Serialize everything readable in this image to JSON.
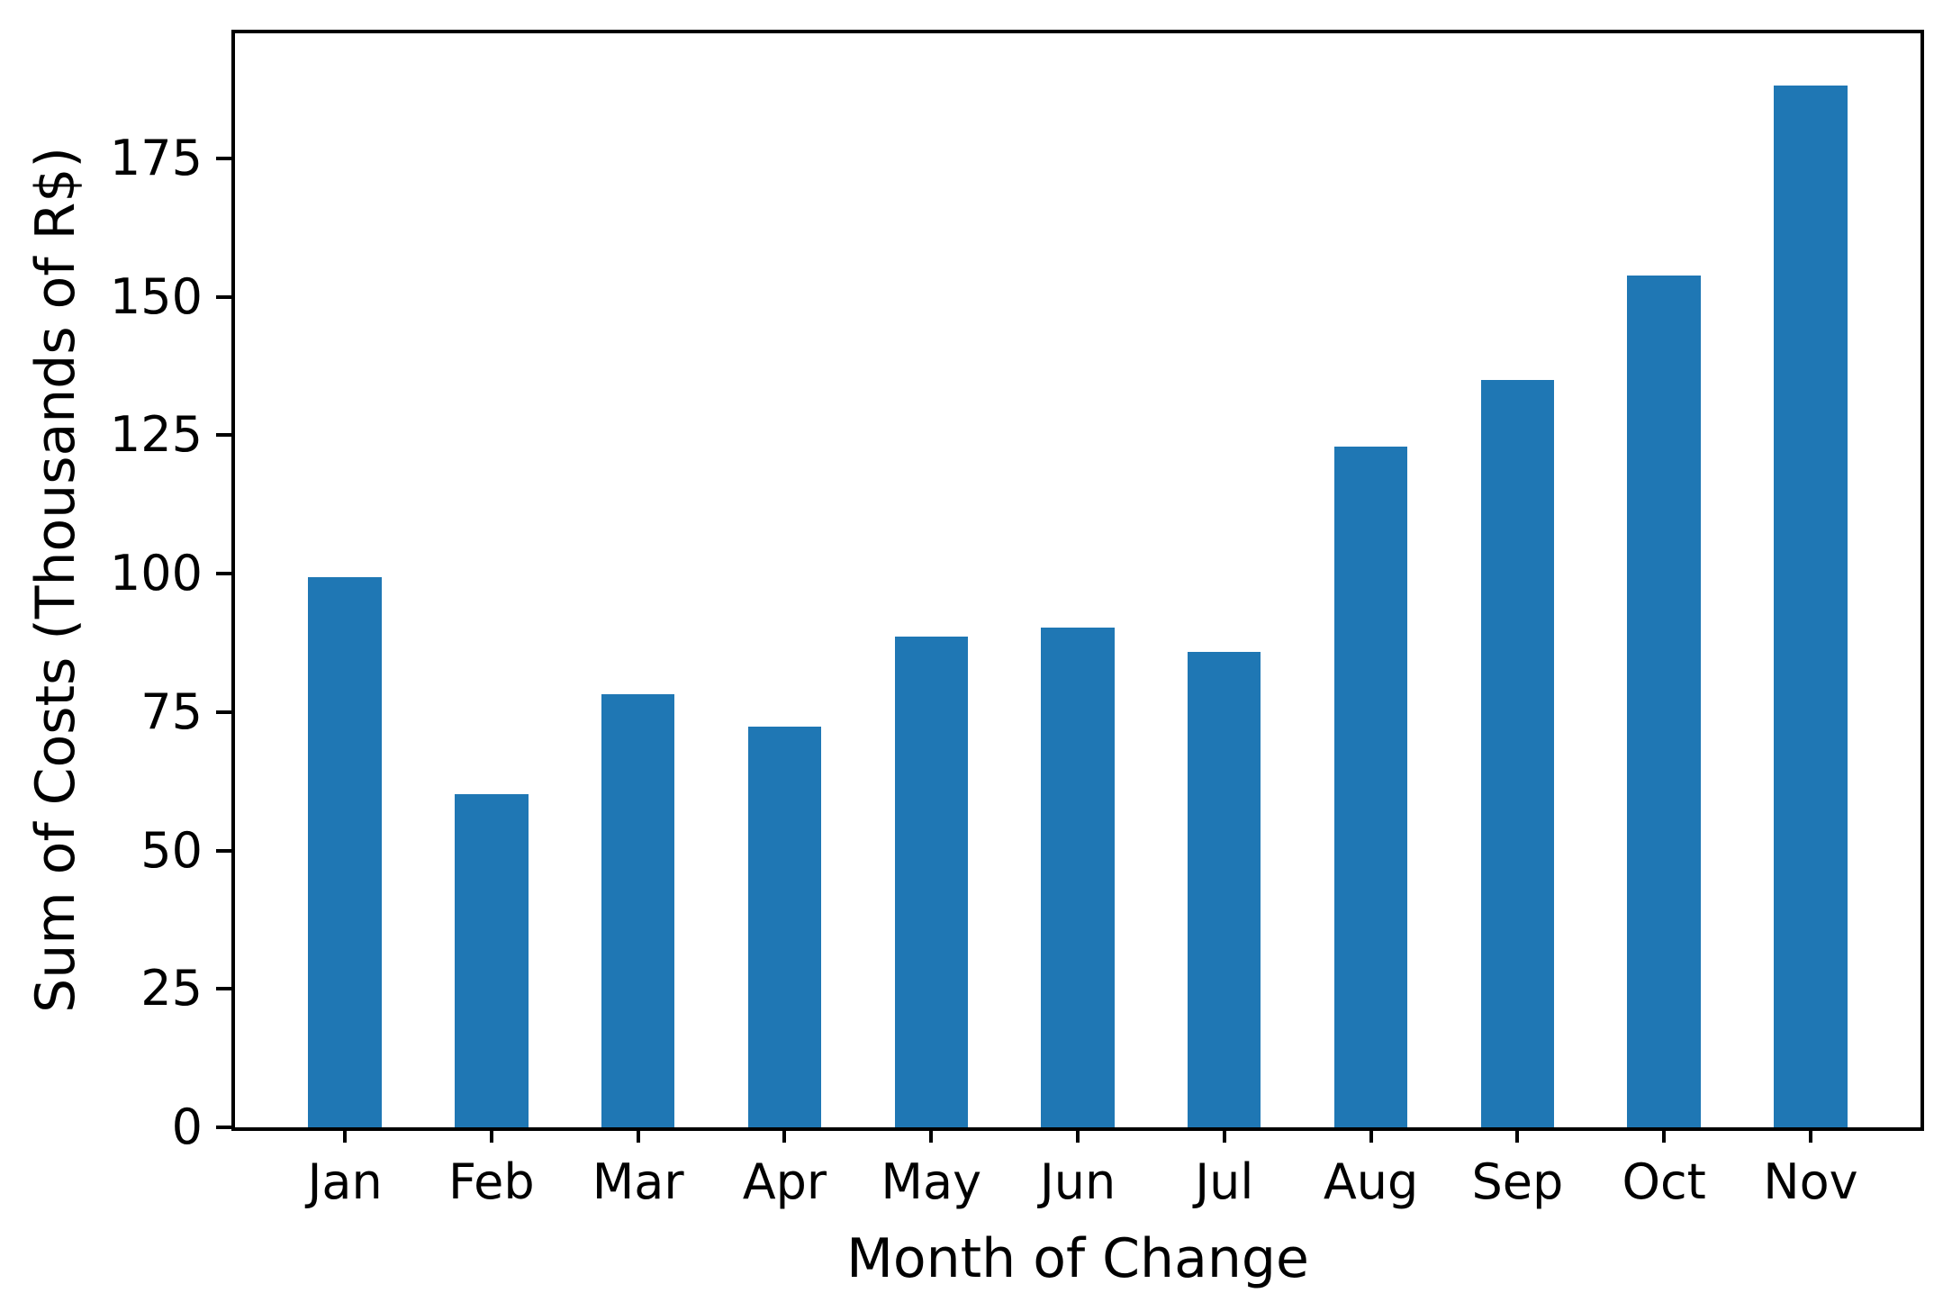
{
  "chart_data": {
    "type": "bar",
    "title": "",
    "categories": [
      "Jan",
      "Feb",
      "Mar",
      "Apr",
      "May",
      "Jun",
      "Jul",
      "Aug",
      "Sep",
      "Oct",
      "Nov"
    ],
    "values": [
      99.4,
      60.1,
      78.2,
      72.4,
      88.6,
      90.3,
      85.8,
      122.9,
      135.0,
      153.9,
      188.2
    ],
    "xlabel": "Month of Change",
    "ylabel": "Sum of Costs (Thousands of R$)",
    "yticks": [
      0,
      25,
      50,
      75,
      100,
      125,
      150,
      175
    ],
    "ylim": [
      0,
      197.6
    ],
    "xlim_slots": 11.5,
    "first_bar_center_slot": 0.75,
    "bar_width_slots": 0.5,
    "grid": false,
    "legend": "none",
    "colors": {
      "bar": "#1f77b4",
      "text": "#000000",
      "spine": "#000000",
      "background": "#ffffff"
    }
  }
}
